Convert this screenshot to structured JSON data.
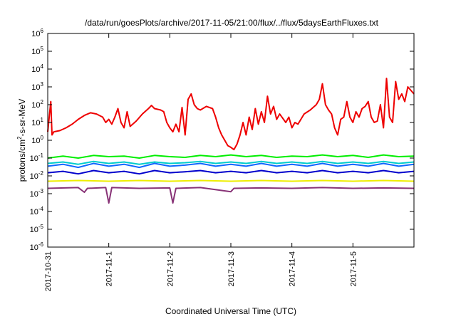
{
  "chart_data": {
    "type": "line",
    "title": "/data/run/goesPlots/archive/2017-11-05/21:00/flux/../flux/5daysEarthFluxes.txt",
    "xlabel": "Coordinated Universal Time (UTC)",
    "ylabel_parts": [
      "protons/cm",
      "2",
      "-s-sr-MeV"
    ],
    "x_ticks": [
      "2017-10-31",
      "2017-11-1",
      "2017-11-2",
      "2017-11-3",
      "2017-11-4",
      "2017-11-5"
    ],
    "xlim_days": [
      0,
      6
    ],
    "y_scale": "log",
    "ylim": [
      1e-06,
      1000000.0
    ],
    "y_tick_exponents": [
      -6,
      -5,
      -4,
      -3,
      -2,
      -1,
      0,
      1,
      2,
      3,
      4,
      5,
      6
    ],
    "grid": false,
    "series": [
      {
        "color": "#ee0000",
        "points": [
          [
            0.0,
            3.0
          ],
          [
            0.05,
            150
          ],
          [
            0.07,
            2.0
          ],
          [
            0.1,
            3.0
          ],
          [
            0.2,
            3.5
          ],
          [
            0.3,
            5.0
          ],
          [
            0.4,
            8.0
          ],
          [
            0.5,
            15
          ],
          [
            0.6,
            25
          ],
          [
            0.7,
            35
          ],
          [
            0.8,
            30
          ],
          [
            0.9,
            20
          ],
          [
            0.95,
            10
          ],
          [
            1.0,
            15
          ],
          [
            1.05,
            8
          ],
          [
            1.1,
            20
          ],
          [
            1.15,
            60
          ],
          [
            1.2,
            10
          ],
          [
            1.25,
            5
          ],
          [
            1.3,
            40
          ],
          [
            1.35,
            6
          ],
          [
            1.45,
            12
          ],
          [
            1.55,
            30
          ],
          [
            1.65,
            60
          ],
          [
            1.7,
            90
          ],
          [
            1.75,
            60
          ],
          [
            1.85,
            50
          ],
          [
            1.9,
            40
          ],
          [
            1.95,
            10
          ],
          [
            2.0,
            5
          ],
          [
            2.05,
            3
          ],
          [
            2.1,
            8
          ],
          [
            2.15,
            3
          ],
          [
            2.2,
            70
          ],
          [
            2.25,
            2
          ],
          [
            2.3,
            200
          ],
          [
            2.35,
            400
          ],
          [
            2.4,
            100
          ],
          [
            2.45,
            60
          ],
          [
            2.5,
            50
          ],
          [
            2.6,
            80
          ],
          [
            2.7,
            60
          ],
          [
            2.75,
            20
          ],
          [
            2.8,
            5
          ],
          [
            2.85,
            2
          ],
          [
            2.9,
            1
          ],
          [
            2.95,
            0.5
          ],
          [
            3.0,
            0.4
          ],
          [
            3.05,
            0.3
          ],
          [
            3.1,
            0.6
          ],
          [
            3.15,
            2
          ],
          [
            3.2,
            10
          ],
          [
            3.25,
            2
          ],
          [
            3.3,
            20
          ],
          [
            3.35,
            4
          ],
          [
            3.4,
            60
          ],
          [
            3.45,
            8
          ],
          [
            3.5,
            40
          ],
          [
            3.55,
            10
          ],
          [
            3.6,
            300
          ],
          [
            3.65,
            30
          ],
          [
            3.7,
            80
          ],
          [
            3.75,
            15
          ],
          [
            3.8,
            30
          ],
          [
            3.9,
            10
          ],
          [
            3.95,
            20
          ],
          [
            4.0,
            5
          ],
          [
            4.05,
            10
          ],
          [
            4.1,
            8
          ],
          [
            4.2,
            30
          ],
          [
            4.3,
            50
          ],
          [
            4.4,
            100
          ],
          [
            4.45,
            200
          ],
          [
            4.5,
            1500
          ],
          [
            4.55,
            100
          ],
          [
            4.6,
            50
          ],
          [
            4.65,
            30
          ],
          [
            4.7,
            5
          ],
          [
            4.75,
            2
          ],
          [
            4.8,
            15
          ],
          [
            4.85,
            20
          ],
          [
            4.9,
            150
          ],
          [
            4.95,
            20
          ],
          [
            5.0,
            10
          ],
          [
            5.05,
            40
          ],
          [
            5.1,
            20
          ],
          [
            5.15,
            60
          ],
          [
            5.2,
            80
          ],
          [
            5.25,
            150
          ],
          [
            5.3,
            20
          ],
          [
            5.35,
            10
          ],
          [
            5.4,
            12
          ],
          [
            5.45,
            100
          ],
          [
            5.5,
            5
          ],
          [
            5.55,
            3000
          ],
          [
            5.6,
            20
          ],
          [
            5.65,
            10
          ],
          [
            5.7,
            2000
          ],
          [
            5.75,
            200
          ],
          [
            5.8,
            400
          ],
          [
            5.85,
            150
          ],
          [
            5.9,
            1000
          ],
          [
            6.0,
            400
          ]
        ]
      },
      {
        "color": "#00ee00",
        "points": [
          [
            0.0,
            0.1
          ],
          [
            0.25,
            0.13
          ],
          [
            0.5,
            0.1
          ],
          [
            0.75,
            0.14
          ],
          [
            1.0,
            0.12
          ],
          [
            1.25,
            0.13
          ],
          [
            1.5,
            0.1
          ],
          [
            1.75,
            0.14
          ],
          [
            2.0,
            0.12
          ],
          [
            2.25,
            0.11
          ],
          [
            2.5,
            0.14
          ],
          [
            2.75,
            0.12
          ],
          [
            3.0,
            0.15
          ],
          [
            3.25,
            0.12
          ],
          [
            3.5,
            0.14
          ],
          [
            3.75,
            0.11
          ],
          [
            4.0,
            0.13
          ],
          [
            4.25,
            0.12
          ],
          [
            4.5,
            0.15
          ],
          [
            4.75,
            0.12
          ],
          [
            5.0,
            0.14
          ],
          [
            5.25,
            0.11
          ],
          [
            5.5,
            0.15
          ],
          [
            5.75,
            0.12
          ],
          [
            6.0,
            0.13
          ]
        ]
      },
      {
        "color": "#00cccc",
        "points": [
          [
            0.0,
            0.05
          ],
          [
            0.25,
            0.06
          ],
          [
            0.5,
            0.045
          ],
          [
            0.75,
            0.065
          ],
          [
            1.0,
            0.05
          ],
          [
            1.25,
            0.06
          ],
          [
            1.5,
            0.045
          ],
          [
            1.75,
            0.06
          ],
          [
            2.0,
            0.05
          ],
          [
            2.25,
            0.055
          ],
          [
            2.5,
            0.065
          ],
          [
            2.75,
            0.05
          ],
          [
            3.0,
            0.06
          ],
          [
            3.25,
            0.05
          ],
          [
            3.5,
            0.065
          ],
          [
            3.75,
            0.05
          ],
          [
            4.0,
            0.06
          ],
          [
            4.25,
            0.05
          ],
          [
            4.5,
            0.065
          ],
          [
            4.75,
            0.05
          ],
          [
            5.0,
            0.06
          ],
          [
            5.25,
            0.05
          ],
          [
            5.5,
            0.065
          ],
          [
            5.75,
            0.05
          ],
          [
            6.0,
            0.06
          ]
        ]
      },
      {
        "color": "#1166ff",
        "points": [
          [
            0.0,
            0.035
          ],
          [
            0.25,
            0.045
          ],
          [
            0.5,
            0.03
          ],
          [
            0.75,
            0.05
          ],
          [
            1.0,
            0.035
          ],
          [
            1.25,
            0.045
          ],
          [
            1.5,
            0.03
          ],
          [
            1.75,
            0.05
          ],
          [
            2.0,
            0.035
          ],
          [
            2.25,
            0.04
          ],
          [
            2.5,
            0.05
          ],
          [
            2.75,
            0.035
          ],
          [
            3.0,
            0.045
          ],
          [
            3.25,
            0.035
          ],
          [
            3.5,
            0.05
          ],
          [
            3.75,
            0.035
          ],
          [
            4.0,
            0.045
          ],
          [
            4.25,
            0.035
          ],
          [
            4.5,
            0.05
          ],
          [
            4.75,
            0.035
          ],
          [
            5.0,
            0.045
          ],
          [
            5.25,
            0.035
          ],
          [
            5.5,
            0.05
          ],
          [
            5.75,
            0.035
          ],
          [
            6.0,
            0.045
          ]
        ]
      },
      {
        "color": "#0000cc",
        "points": [
          [
            0.0,
            0.015
          ],
          [
            0.25,
            0.018
          ],
          [
            0.5,
            0.013
          ],
          [
            0.75,
            0.02
          ],
          [
            1.0,
            0.015
          ],
          [
            1.25,
            0.018
          ],
          [
            1.5,
            0.013
          ],
          [
            1.75,
            0.02
          ],
          [
            2.0,
            0.015
          ],
          [
            2.25,
            0.017
          ],
          [
            2.5,
            0.02
          ],
          [
            2.75,
            0.015
          ],
          [
            3.0,
            0.018
          ],
          [
            3.25,
            0.015
          ],
          [
            3.5,
            0.02
          ],
          [
            3.75,
            0.015
          ],
          [
            4.0,
            0.018
          ],
          [
            4.25,
            0.015
          ],
          [
            4.5,
            0.02
          ],
          [
            4.75,
            0.015
          ],
          [
            5.0,
            0.018
          ],
          [
            5.25,
            0.015
          ],
          [
            5.5,
            0.02
          ],
          [
            5.75,
            0.015
          ],
          [
            6.0,
            0.018
          ]
        ]
      },
      {
        "color": "#eeee00",
        "points": [
          [
            0.0,
            0.005
          ],
          [
            0.5,
            0.0055
          ],
          [
            1.0,
            0.005
          ],
          [
            1.5,
            0.0055
          ],
          [
            2.0,
            0.005
          ],
          [
            2.5,
            0.0055
          ],
          [
            3.0,
            0.005
          ],
          [
            3.5,
            0.0055
          ],
          [
            4.0,
            0.005
          ],
          [
            4.5,
            0.0055
          ],
          [
            5.0,
            0.005
          ],
          [
            5.5,
            0.0055
          ],
          [
            6.0,
            0.005
          ]
        ]
      },
      {
        "color": "#883377",
        "points": [
          [
            0.0,
            0.002
          ],
          [
            0.5,
            0.0022
          ],
          [
            0.6,
            0.0012
          ],
          [
            0.65,
            0.002
          ],
          [
            0.95,
            0.0022
          ],
          [
            1.0,
            0.0003
          ],
          [
            1.05,
            0.0022
          ],
          [
            1.5,
            0.002
          ],
          [
            2.0,
            0.0021
          ],
          [
            2.05,
            0.0003
          ],
          [
            2.1,
            0.002
          ],
          [
            2.5,
            0.0022
          ],
          [
            3.0,
            0.0013
          ],
          [
            3.05,
            0.002
          ],
          [
            3.5,
            0.0021
          ],
          [
            4.0,
            0.002
          ],
          [
            4.5,
            0.0022
          ],
          [
            5.0,
            0.002
          ],
          [
            5.5,
            0.0021
          ],
          [
            6.0,
            0.002
          ]
        ]
      }
    ]
  }
}
